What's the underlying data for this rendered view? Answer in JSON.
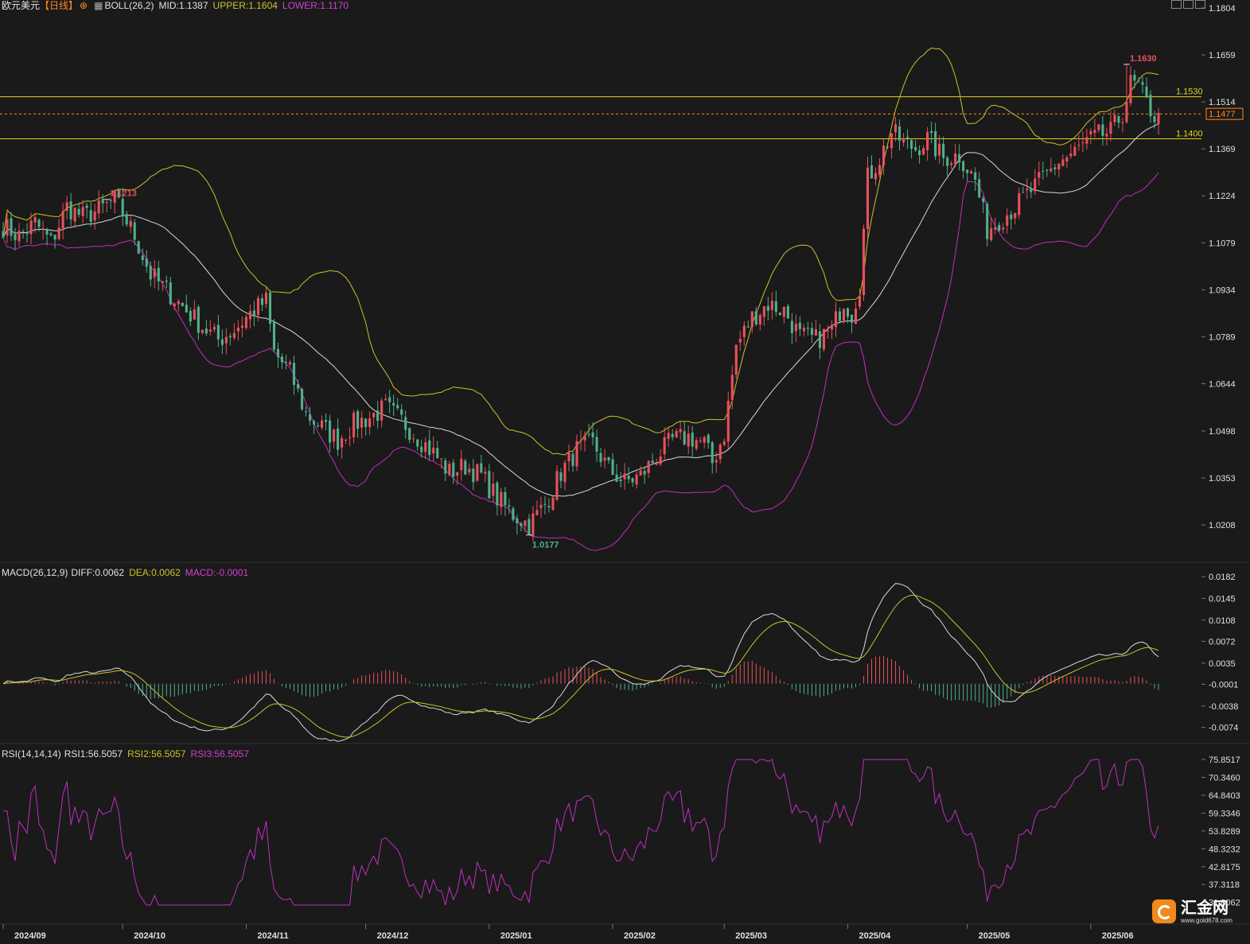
{
  "header": {
    "symbol": "欧元美元",
    "period": "【日线】",
    "boll_label": "BOLL(26,2)",
    "boll_mid": "MID:1.1387",
    "boll_upper": "UPPER:1.1604",
    "boll_lower": "LOWER:1.1170"
  },
  "macd_header": {
    "label": "MACD(26,12,9)",
    "diff": "DIFF:0.0062",
    "dea": "DEA:0.0062",
    "macd": "MACD:-0.0001"
  },
  "rsi_header": {
    "label": "RSI(14,14,14)",
    "rsi1": "RSI1:56.5057",
    "rsi2": "RSI2:56.5057",
    "rsi3": "RSI3:56.5057"
  },
  "logo": {
    "name": "汇金网",
    "url": "www.gold678.com"
  },
  "colors": {
    "up": "#e8505b",
    "down": "#4fb08a",
    "boll_upper": "#c9c22a",
    "boll_mid": "#d9d9d9",
    "boll_lower": "#c02fc0",
    "level": "#e6d21a",
    "current": "#ff8a1e",
    "diff": "#d9d9d9",
    "dea": "#c9c22a",
    "rsi": "#c02fc0",
    "axis_text": "#e0e0e0"
  },
  "chart_data": {
    "type": "candlestick",
    "price_axis": {
      "min": 1.011,
      "max": 1.1804,
      "ticks": [
        "1.1804",
        "1.1659",
        "1.1514",
        "1.1369",
        "1.1224",
        "1.1079",
        "1.0934",
        "1.0789",
        "1.0644",
        "1.0498",
        "1.0353",
        "1.0208"
      ]
    },
    "x_labels": [
      "2024/09",
      "2024/10",
      "2024/11",
      "2024/12",
      "2025/01",
      "2025/02",
      "2025/03",
      "2025/04",
      "2025/05",
      "2025/06"
    ],
    "x_label_bar_index": [
      0,
      30,
      61,
      91,
      122,
      153,
      181,
      212,
      242,
      273
    ],
    "levels": [
      {
        "value": 1.153,
        "label": "1.1530"
      },
      {
        "value": 1.14,
        "label": "1.1400"
      }
    ],
    "current_price": {
      "value": 1.1477,
      "label": "1.1477"
    },
    "annotations": [
      {
        "bar": 26,
        "value": 1.1213,
        "label": "1.1213",
        "type": "high"
      },
      {
        "bar": 132,
        "value": 1.0177,
        "label": "1.0177",
        "type": "low"
      },
      {
        "bar": 282,
        "value": 1.163,
        "label": "1.1630",
        "type": "high"
      }
    ],
    "close_keys": [
      [
        0,
        1.113
      ],
      [
        4,
        1.11
      ],
      [
        8,
        1.114
      ],
      [
        12,
        1.108
      ],
      [
        16,
        1.119
      ],
      [
        20,
        1.116
      ],
      [
        24,
        1.118
      ],
      [
        28,
        1.121
      ],
      [
        30,
        1.117
      ],
      [
        33,
        1.11
      ],
      [
        37,
        1.098
      ],
      [
        42,
        1.092
      ],
      [
        46,
        1.087
      ],
      [
        50,
        1.082
      ],
      [
        54,
        1.078
      ],
      [
        58,
        1.081
      ],
      [
        62,
        1.086
      ],
      [
        66,
        1.09
      ],
      [
        68,
        1.074
      ],
      [
        72,
        1.068
      ],
      [
        76,
        1.055
      ],
      [
        80,
        1.051
      ],
      [
        84,
        1.047
      ],
      [
        88,
        1.052
      ],
      [
        92,
        1.054
      ],
      [
        96,
        1.057
      ],
      [
        100,
        1.053
      ],
      [
        104,
        1.048
      ],
      [
        108,
        1.043
      ],
      [
        112,
        1.037
      ],
      [
        116,
        1.039
      ],
      [
        120,
        1.036
      ],
      [
        124,
        1.029
      ],
      [
        128,
        1.024
      ],
      [
        132,
        1.021
      ],
      [
        136,
        1.027
      ],
      [
        140,
        1.037
      ],
      [
        144,
        1.044
      ],
      [
        148,
        1.046
      ],
      [
        152,
        1.038
      ],
      [
        156,
        1.034
      ],
      [
        160,
        1.036
      ],
      [
        164,
        1.042
      ],
      [
        168,
        1.047
      ],
      [
        172,
        1.048
      ],
      [
        176,
        1.046
      ],
      [
        178,
        1.04
      ],
      [
        181,
        1.049
      ],
      [
        184,
        1.076
      ],
      [
        188,
        1.085
      ],
      [
        192,
        1.089
      ],
      [
        196,
        1.087
      ],
      [
        200,
        1.079
      ],
      [
        204,
        1.078
      ],
      [
        208,
        1.081
      ],
      [
        211,
        1.09
      ],
      [
        213,
        1.086
      ],
      [
        215,
        1.095
      ],
      [
        217,
        1.128
      ],
      [
        220,
        1.134
      ],
      [
        223,
        1.142
      ],
      [
        226,
        1.139
      ],
      [
        229,
        1.137
      ],
      [
        232,
        1.14
      ],
      [
        236,
        1.134
      ],
      [
        240,
        1.135
      ],
      [
        244,
        1.127
      ],
      [
        247,
        1.112
      ],
      [
        250,
        1.115
      ],
      [
        254,
        1.119
      ],
      [
        258,
        1.124
      ],
      [
        262,
        1.129
      ],
      [
        265,
        1.133
      ],
      [
        268,
        1.135
      ],
      [
        272,
        1.139
      ],
      [
        275,
        1.141
      ],
      [
        278,
        1.142
      ],
      [
        281,
        1.148
      ],
      [
        283,
        1.157
      ],
      [
        285,
        1.156
      ],
      [
        287,
        1.151
      ],
      [
        289,
        1.147
      ],
      [
        290,
        1.148
      ]
    ],
    "series": [
      {
        "name": "MID",
        "values": [
          1.1387
        ]
      },
      {
        "name": "UPPER",
        "values": [
          1.1604
        ]
      },
      {
        "name": "LOWER",
        "values": [
          1.117
        ]
      },
      {
        "name": "DIFF",
        "values": [
          0.0062
        ]
      },
      {
        "name": "DEA",
        "values": [
          0.0062
        ]
      },
      {
        "name": "MACD",
        "values": [
          -0.0001
        ]
      },
      {
        "name": "RSI1",
        "values": [
          56.5057
        ]
      },
      {
        "name": "RSI2",
        "values": [
          56.5057
        ]
      },
      {
        "name": "RSI3",
        "values": [
          56.5057
        ]
      }
    ],
    "macd_axis": {
      "min": -0.0095,
      "max": 0.0182,
      "ticks": [
        "0.0182",
        "0.0145",
        "0.0108",
        "0.0072",
        "0.0035",
        "-0.0001",
        "-0.0038",
        "-0.0074"
      ]
    },
    "rsi_axis": {
      "min": 30.5,
      "max": 75.8517,
      "ticks": [
        "75.8517",
        "70.3460",
        "64.8403",
        "59.3346",
        "53.8289",
        "48.3232",
        "42.8175",
        "37.3118",
        "31.8062"
      ]
    }
  }
}
